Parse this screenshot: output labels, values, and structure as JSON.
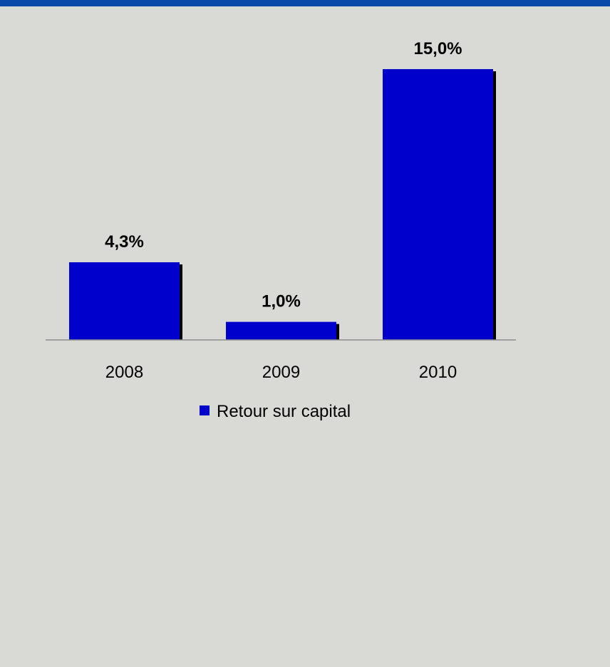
{
  "chart_data": {
    "type": "bar",
    "categories": [
      "2008",
      "2009",
      "2010"
    ],
    "series": [
      {
        "name": "Retour sur capital",
        "values": [
          4.3,
          1.0,
          15.0
        ]
      }
    ],
    "data_labels": [
      "4,3%",
      "1,0%",
      "15,0%"
    ],
    "ylim": [
      0,
      15
    ],
    "grid": false,
    "legend": "bottom-center",
    "colors": {
      "bar": "#0000cc",
      "bar_shadow": "#000000",
      "top_rule": "#0b4aa8",
      "background": "#d9d9d6"
    }
  }
}
